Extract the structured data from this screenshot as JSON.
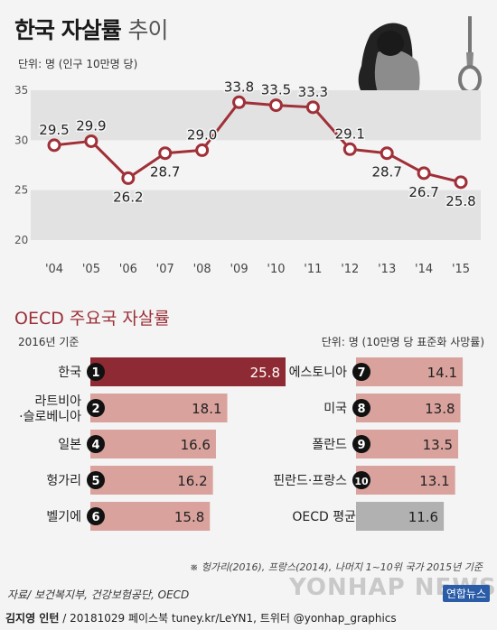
{
  "header": {
    "title_bold": "한국 자살률",
    "title_light": "추이",
    "unit": "단위: 명 (인구 10만명 당)"
  },
  "chart_data": [
    {
      "type": "line",
      "x": [
        "'04",
        "'05",
        "'06",
        "'07",
        "'08",
        "'09",
        "'10",
        "'11",
        "'12",
        "'13",
        "'14",
        "'15"
      ],
      "series": [
        {
          "values": [
            29.5,
            29.9,
            26.2,
            28.7,
            29.0,
            33.8,
            33.5,
            33.3,
            29.1,
            28.7,
            26.7,
            25.8
          ]
        }
      ],
      "y_ticks": [
        20,
        25,
        30,
        35
      ],
      "ylim": [
        20,
        35
      ],
      "labels": [
        "29.5",
        "29.9",
        "26.2",
        "28.7",
        "29.0",
        "33.8",
        "33.5",
        "33.3",
        "29.1",
        "28.7",
        "26.7",
        "25.8"
      ]
    },
    {
      "type": "bar",
      "title": "OECD 주요국 자살률",
      "subtitle_left": "2016년 기준",
      "subtitle_right": "단위: 명 (10만명 당 표준화 사망률)",
      "categories": [
        "한국",
        "라트비아·슬로베니아",
        "일본",
        "헝가리",
        "벨기에",
        "에스토니아",
        "미국",
        "폴란드",
        "핀란드·프랑스",
        "OECD 평균"
      ],
      "ranks": [
        "1",
        "2",
        "4",
        "5",
        "6",
        "7",
        "8",
        "9",
        "10",
        ""
      ],
      "values": [
        25.8,
        18.1,
        16.6,
        16.2,
        15.8,
        14.1,
        13.8,
        13.5,
        13.1,
        11.6
      ],
      "value_labels": [
        "25.8",
        "18.1",
        "16.6",
        "16.2",
        "15.8",
        "14.1",
        "13.8",
        "13.5",
        "13.1",
        "11.6"
      ]
    }
  ],
  "left_labels": [
    [
      "한국"
    ],
    [
      "라트비아",
      "·슬로베니아"
    ],
    [
      "일본"
    ],
    [
      "헝가리"
    ],
    [
      "벨기에"
    ]
  ],
  "right_labels": [
    [
      "에스토니아"
    ],
    [
      "미국"
    ],
    [
      "폴란드"
    ],
    [
      "핀란드·프랑스"
    ],
    [
      "OECD 평균"
    ]
  ],
  "colors": {
    "highlight": "#8e2a33",
    "bar": "#d9a29d",
    "average": "#b1b1b1",
    "line": "#a03038",
    "band": "#e2e2e2"
  },
  "footnote": "※ 헝가리(2016), 프랑스(2014), 나머지 1~10위 국가 2015년 기준",
  "source": "자료/ 보건복지부, 건강보험공단, OECD",
  "credit_name": "김지영 인턴",
  "credit_rest": " / 20181029  페이스북 tuney.kr/LeYN1, 트위터 @yonhap_graphics",
  "watermark": "YONHAP NEWS",
  "brand": "연합뉴스",
  "icons": [
    "person-hugging-knees-icon",
    "noose-icon"
  ]
}
